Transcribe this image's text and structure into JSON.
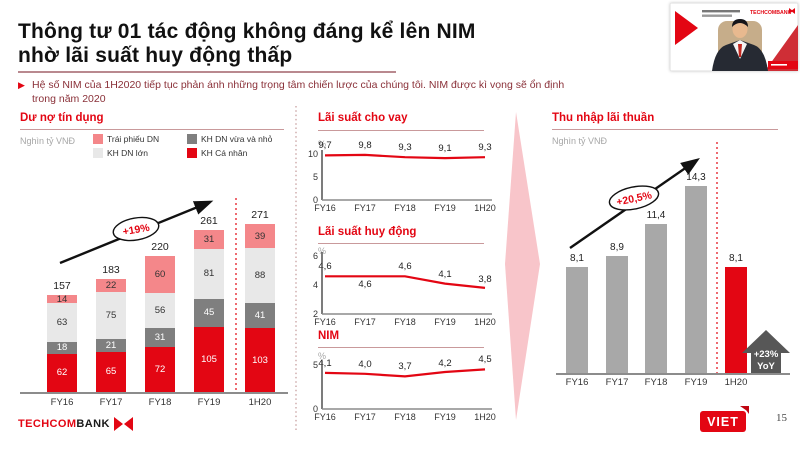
{
  "slide": {
    "title_line1": "Thông tư 01 tác động không đáng kể lên NIM",
    "title_line2": "nhờ lãi suất huy động thấp",
    "bullet": "Hệ số NIM của 1H2020 tiếp tục phản ánh những trọng tâm chiến lược của chúng tôi. NIM được kì vọng sẽ ổn định trong năm 2020",
    "page_number": "15"
  },
  "footer": {
    "logo_techcom": "TECHCOM",
    "logo_bank": "BANK",
    "viet_badge": "VIET"
  },
  "video_overlay": {
    "brand": "TECHCOMBANK"
  },
  "colors": {
    "accent_red": "#e30613",
    "pink": "#f4878a",
    "light_gray": "#e8e8e8",
    "dark_gray": "#7f7f7f",
    "bar_gray": "#a8a8a8",
    "badge_gray": "#575757"
  },
  "chart_data": [
    {
      "id": "credit-balance",
      "type": "bar",
      "stacked": true,
      "title": "Dư nợ tín dụng",
      "unit": "Nghìn tỷ VNĐ",
      "categories": [
        "FY16",
        "FY17",
        "FY18",
        "FY19",
        "1H20"
      ],
      "series": [
        {
          "name": "KH Cá nhân",
          "color": "#e30613",
          "label_color": "#ffffff",
          "values": [
            62,
            65,
            72,
            105,
            103
          ]
        },
        {
          "name": "KH DN vừa và nhỏ",
          "color": "#7f7f7f",
          "label_color": "#ffffff",
          "values": [
            18,
            21,
            31,
            45,
            41
          ]
        },
        {
          "name": "KH DN lớn",
          "color": "#e8e8e8",
          "label_color": "#333333",
          "values": [
            63,
            75,
            56,
            81,
            88
          ]
        },
        {
          "name": "Trái phiếu DN",
          "color": "#f4878a",
          "label_color": "#333333",
          "values": [
            14,
            22,
            60,
            31,
            39
          ]
        }
      ],
      "totals": [
        157,
        183,
        220,
        261,
        271
      ],
      "legend_order": [
        "Trái phiếu DN",
        "KH DN vừa và nhỏ",
        "KH DN lớn",
        "KH Cá nhân"
      ],
      "growth_label": "+19%"
    },
    {
      "id": "lending-rate",
      "type": "line",
      "title": "Lãi suất cho vay",
      "ylabel": "%",
      "categories": [
        "FY16",
        "FY17",
        "FY18",
        "FY19",
        "1H20"
      ],
      "values": [
        9.7,
        9.8,
        9.3,
        9.1,
        9.3
      ],
      "labels": [
        "9,7",
        "9,8",
        "9,3",
        "9,1",
        "9,3"
      ],
      "yticks": [
        0,
        5,
        10
      ],
      "ylim": [
        0,
        10
      ]
    },
    {
      "id": "deposit-rate",
      "type": "line",
      "title": "Lãi suất huy động",
      "ylabel": "%",
      "categories": [
        "FY16",
        "FY17",
        "FY18",
        "FY19",
        "1H20"
      ],
      "values": [
        4.6,
        4.6,
        4.6,
        4.1,
        3.8
      ],
      "labels": [
        "4,6",
        "4,6",
        "4,6",
        "4,1",
        "3,8"
      ],
      "yticks": [
        2,
        4,
        6
      ],
      "ylim": [
        2,
        6
      ]
    },
    {
      "id": "nim",
      "type": "line",
      "title": "NIM",
      "ylabel": "%",
      "categories": [
        "FY16",
        "FY17",
        "FY18",
        "FY19",
        "1H20"
      ],
      "values": [
        4.1,
        4.0,
        3.7,
        4.2,
        4.5
      ],
      "labels": [
        "4,1",
        "4,0",
        "3,7",
        "4,2",
        "4,5"
      ],
      "yticks": [
        0,
        5
      ],
      "ylim": [
        0,
        5
      ]
    },
    {
      "id": "net-interest-income",
      "type": "bar",
      "title": "Thu nhập lãi thuần",
      "unit": "Nghìn tỷ VNĐ",
      "categories": [
        "FY16",
        "FY17",
        "FY18",
        "FY19",
        "1H20"
      ],
      "values": [
        8.1,
        8.9,
        11.4,
        14.3,
        8.1
      ],
      "labels": [
        "8,1",
        "8,9",
        "11,4",
        "14,3",
        "8,1"
      ],
      "bar_colors": [
        "#a8a8a8",
        "#a8a8a8",
        "#a8a8a8",
        "#a8a8a8",
        "#e30613"
      ],
      "growth_label": "+20,5%",
      "yoy_badge": [
        "+23%",
        "YoY"
      ]
    }
  ]
}
